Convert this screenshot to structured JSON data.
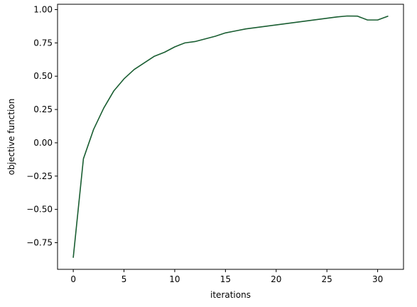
{
  "chart_data": {
    "type": "line",
    "title": "",
    "xlabel": "iterations",
    "ylabel": "objective function",
    "xlim": [
      -1.55,
      32.55
    ],
    "ylim": [
      -0.95,
      1.04
    ],
    "xticks": [
      0,
      5,
      10,
      15,
      20,
      25,
      30
    ],
    "yticks": [
      -0.75,
      -0.5,
      -0.25,
      0.0,
      0.25,
      0.5,
      0.75,
      1.0
    ],
    "ytick_labels": [
      "−0.75",
      "−0.50",
      "−0.25",
      "0.00",
      "0.25",
      "0.50",
      "0.75",
      "1.00"
    ],
    "grid": false,
    "series": [
      {
        "color": "#1a5e32",
        "x": [
          0,
          1,
          2,
          3,
          4,
          5,
          6,
          7,
          8,
          9,
          10,
          11,
          12,
          13,
          14,
          15,
          16,
          17,
          18,
          19,
          20,
          21,
          22,
          23,
          24,
          25,
          26,
          27,
          28,
          29,
          30,
          31
        ],
        "y": [
          -0.86,
          -0.12,
          0.1,
          0.26,
          0.39,
          0.48,
          0.55,
          0.6,
          0.65,
          0.68,
          0.72,
          0.75,
          0.76,
          0.78,
          0.8,
          0.825,
          0.84,
          0.855,
          0.865,
          0.875,
          0.885,
          0.895,
          0.905,
          0.915,
          0.925,
          0.935,
          0.945,
          0.952,
          0.951,
          0.922,
          0.922,
          0.95
        ]
      }
    ]
  }
}
